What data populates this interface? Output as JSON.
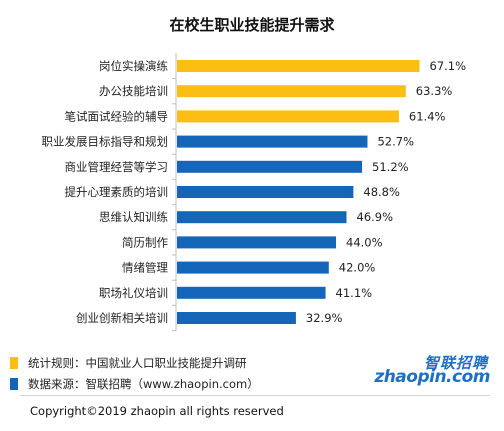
{
  "chart_data": {
    "type": "bar",
    "orientation": "horizontal",
    "title": "在校生职业技能提升需求",
    "categories": [
      "岗位实操演练",
      "办公技能培训",
      "笔试面试经验的辅导",
      "职业发展目标指导和规划",
      "商业管理经营等学习",
      "提升心理素质的培训",
      "思维认知训练",
      "简历制作",
      "情绪管理",
      "职场礼仪培训",
      "创业创新相关培训"
    ],
    "values": [
      67.1,
      63.3,
      61.4,
      52.7,
      51.2,
      48.8,
      46.9,
      44.0,
      42.0,
      41.1,
      32.9
    ],
    "value_labels": [
      "67.1%",
      "63.3%",
      "61.4%",
      "52.7%",
      "51.2%",
      "48.8%",
      "46.9%",
      "44.0%",
      "42.0%",
      "41.1%",
      "32.9%"
    ],
    "highlight_count": 3,
    "colors": {
      "highlight": "#fbbf13",
      "normal": "#1565b8"
    },
    "xlim": [
      0,
      70
    ],
    "grid": false
  },
  "notes": {
    "stat_rule": "统计规则：中国就业人口职业技能提升调研",
    "source": "数据来源：智联招聘（www.zhaopin.com）"
  },
  "logo": {
    "cn": "智联招聘",
    "en": "zhaopin.com"
  },
  "copyright": "Copyright©2019 zhaopin all rights reserved"
}
